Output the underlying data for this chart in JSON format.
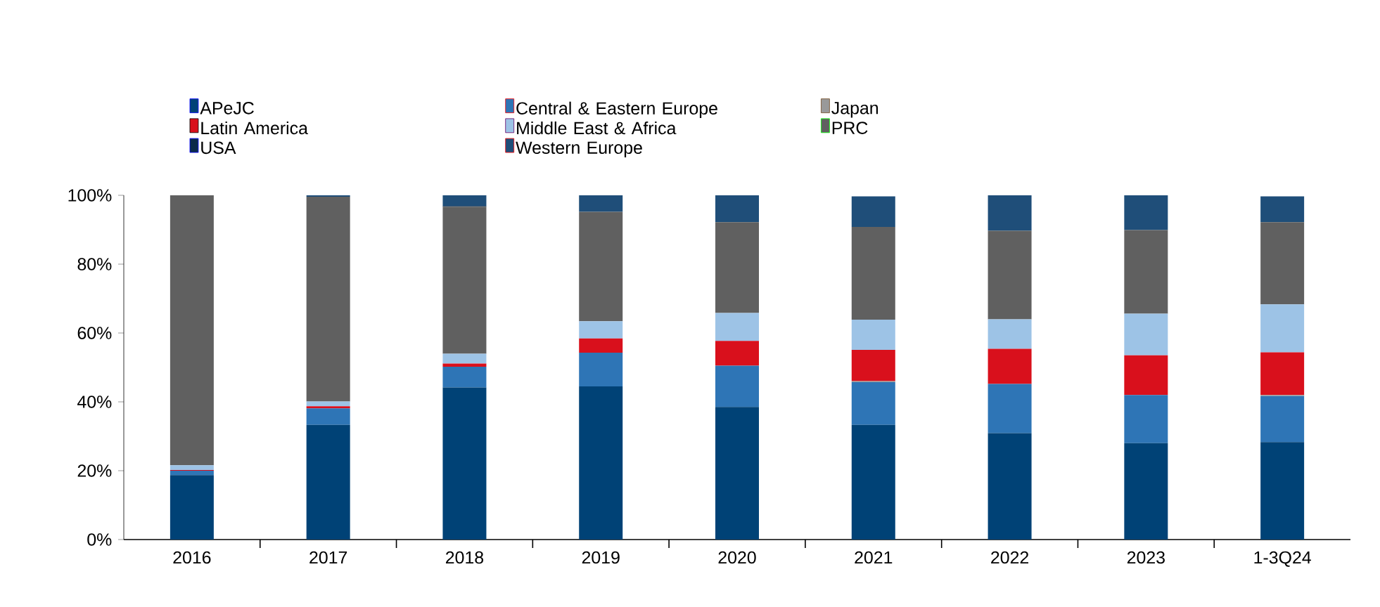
{
  "chart_data": {
    "type": "bar",
    "stacked": true,
    "legend": "top",
    "categories": [
      "2016",
      "2017",
      "2018",
      "2019",
      "2020",
      "2021",
      "2022",
      "2023",
      "1-3Q24"
    ],
    "ylim": [
      0,
      100
    ],
    "yticks": [
      {
        "value": 0,
        "label": "0%"
      },
      {
        "value": 20,
        "label": "20%"
      },
      {
        "value": 40,
        "label": "40%"
      },
      {
        "value": 60,
        "label": "60%"
      },
      {
        "value": 80,
        "label": "80%"
      },
      {
        "value": 100,
        "label": "100%"
      }
    ],
    "series": [
      {
        "name": "APeJC",
        "color": "#004276",
        "values": [
          18.7,
          33.3,
          44.2,
          44.5,
          38.5,
          33.3,
          30.9,
          28.0,
          28.3
        ]
      },
      {
        "name": "Central & Eastern Europe",
        "color": "#2e75b6",
        "values": [
          1.3,
          4.8,
          6.0,
          9.8,
          12.0,
          12.4,
          14.3,
          14.0,
          13.4
        ]
      },
      {
        "name": "Japan",
        "color": "#999999",
        "values": [
          0,
          0,
          0,
          0,
          0,
          0.3,
          0,
          0,
          0.3
        ]
      },
      {
        "name": "Latin America",
        "color": "#d9101c",
        "values": [
          0.2,
          0.6,
          0.9,
          4.1,
          7.2,
          9.1,
          10.2,
          11.5,
          12.4
        ]
      },
      {
        "name": "Middle East & Africa",
        "color": "#9dc3e6",
        "values": [
          1.4,
          1.4,
          2.9,
          5.0,
          8.1,
          8.8,
          8.6,
          12.1,
          13.9
        ]
      },
      {
        "name": "PRC",
        "color": "#606060",
        "values": [
          78.4,
          59.5,
          42.7,
          31.8,
          26.4,
          26.9,
          25.7,
          24.3,
          23.9
        ]
      },
      {
        "name": "USA",
        "color": "#0b2a4a",
        "values": [
          0,
          0,
          0.2,
          0,
          0,
          0,
          0,
          0,
          0
        ]
      },
      {
        "name": "Western Europe",
        "color": "#1f4e79",
        "values": [
          0,
          0.4,
          3.1,
          4.8,
          7.8,
          8.9,
          10.3,
          10.1,
          7.5
        ]
      }
    ]
  }
}
